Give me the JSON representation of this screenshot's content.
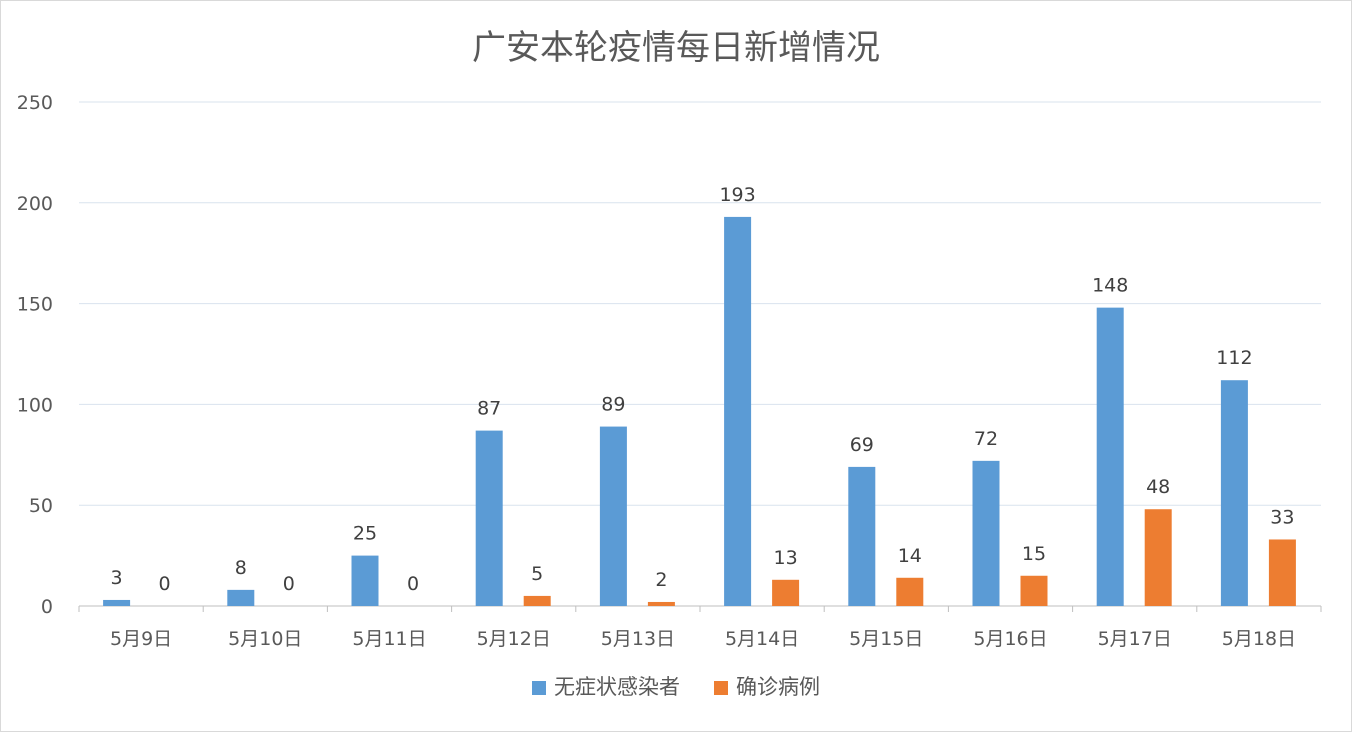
{
  "chart_data": {
    "type": "bar",
    "title": "广安本轮疫情每日新增情况",
    "xlabel": "",
    "ylabel": "",
    "categories": [
      "5月9日",
      "5月10日",
      "5月11日",
      "5月12日",
      "5月13日",
      "5月14日",
      "5月15日",
      "5月16日",
      "5月17日",
      "5月18日"
    ],
    "series": [
      {
        "name": "无症状感染者",
        "color": "#5b9bd5",
        "values": [
          3,
          8,
          25,
          87,
          89,
          193,
          69,
          72,
          148,
          112
        ]
      },
      {
        "name": "确诊病例",
        "color": "#ed7d31",
        "values": [
          0,
          0,
          0,
          5,
          2,
          13,
          14,
          15,
          48,
          33
        ]
      }
    ],
    "ylim": [
      0,
      250
    ],
    "yticks": [
      0,
      50,
      100,
      150,
      200,
      250
    ],
    "grid": true,
    "data_labels": true,
    "legend_position": "bottom"
  }
}
